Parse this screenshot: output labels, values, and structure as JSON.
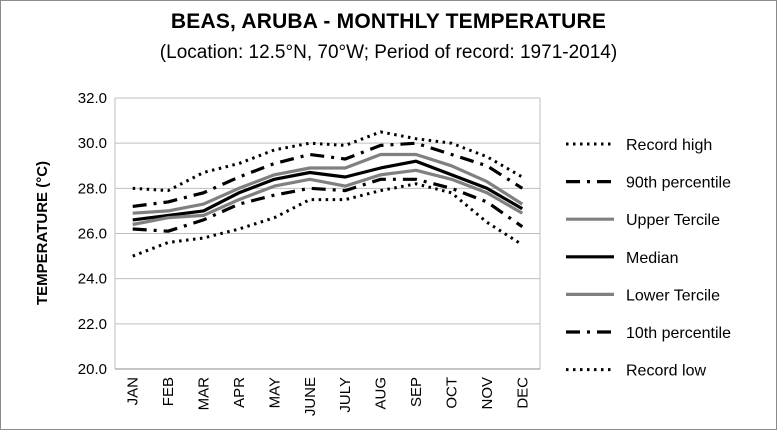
{
  "chart_data": {
    "type": "line",
    "title": "BEAS, ARUBA - MONTHLY TEMPERATURE",
    "subtitle": "(Location: 12.5°N, 70°W; Period of record: 1971-2014)",
    "ylabel": "TEMPERATURE (°C)",
    "xlabel": "",
    "ylim": [
      20.0,
      32.0
    ],
    "yticks": [
      "20.0",
      "22.0",
      "24.0",
      "26.0",
      "28.0",
      "30.0",
      "32.0"
    ],
    "grid": true,
    "legend_position": "right",
    "categories": [
      "JAN",
      "FEB",
      "MAR",
      "APR",
      "MAY",
      "JUNE",
      "JULY",
      "AUG",
      "SEP",
      "OCT",
      "NOV",
      "DEC"
    ],
    "series": [
      {
        "name": "Record high",
        "style": "dotted",
        "color": "#000000",
        "values": [
          28.0,
          27.9,
          28.7,
          29.1,
          29.7,
          30.0,
          29.9,
          30.5,
          30.2,
          30.0,
          29.4,
          28.5
        ]
      },
      {
        "name": "90th percentile",
        "style": "dashdot",
        "color": "#000000",
        "values": [
          27.2,
          27.4,
          27.8,
          28.5,
          29.1,
          29.5,
          29.3,
          29.9,
          30.0,
          29.5,
          29.0,
          28.0
        ]
      },
      {
        "name": "Upper Tercile",
        "style": "solid",
        "color": "#808080",
        "values": [
          26.9,
          27.0,
          27.3,
          28.0,
          28.6,
          28.9,
          28.9,
          29.5,
          29.5,
          29.0,
          28.3,
          27.3
        ]
      },
      {
        "name": "Median",
        "style": "solid",
        "color": "#000000",
        "values": [
          26.6,
          26.8,
          27.0,
          27.8,
          28.4,
          28.7,
          28.5,
          28.9,
          29.2,
          28.6,
          28.0,
          27.1
        ]
      },
      {
        "name": "Lower Tercile",
        "style": "solid",
        "color": "#808080",
        "values": [
          26.4,
          26.7,
          26.8,
          27.5,
          28.1,
          28.4,
          28.1,
          28.6,
          28.8,
          28.4,
          27.8,
          26.9
        ]
      },
      {
        "name": "10th percentile",
        "style": "dashdot",
        "color": "#000000",
        "values": [
          26.2,
          26.1,
          26.6,
          27.3,
          27.7,
          28.0,
          27.9,
          28.4,
          28.4,
          28.0,
          27.4,
          26.3
        ]
      },
      {
        "name": "Record low",
        "style": "dotted",
        "color": "#000000",
        "values": [
          25.0,
          25.6,
          25.8,
          26.2,
          26.7,
          27.5,
          27.5,
          27.9,
          28.2,
          27.8,
          26.5,
          25.5
        ]
      }
    ]
  }
}
